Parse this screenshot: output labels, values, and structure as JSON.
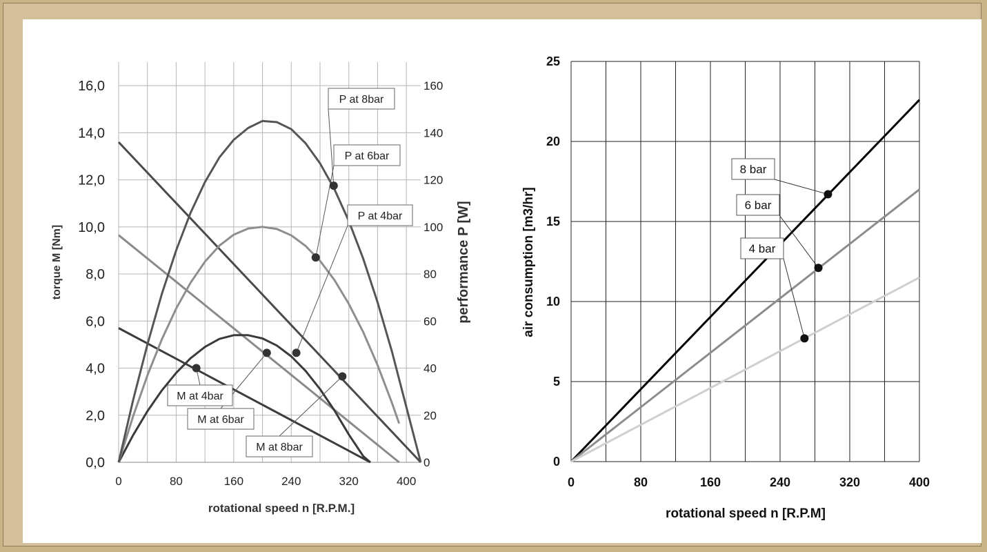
{
  "chart_data": [
    {
      "type": "line",
      "xlabel": "rotational speed n [R.P.M.]",
      "ylabel": "torque M [Nm]",
      "ylabel_right": "performance P [W]",
      "xlim": [
        0,
        420
      ],
      "ylim": [
        0,
        17
      ],
      "ylim_right": [
        0,
        170
      ],
      "x_ticks": [
        "0",
        "80",
        "160",
        "240",
        "320",
        "400"
      ],
      "y_ticks": [
        "0,0",
        "2,0",
        "4,0",
        "6,0",
        "8,0",
        "10,0",
        "12,0",
        "14,0",
        "16,0"
      ],
      "y_right_ticks": [
        "0",
        "20",
        "40",
        "60",
        "80",
        "100",
        "120",
        "140",
        "160"
      ],
      "grid": true,
      "series": [
        {
          "name": "M at 4bar",
          "axis": "left",
          "color": "#3c3c3c",
          "x": [
            0,
            350
          ],
          "y": [
            5.7,
            0.0
          ]
        },
        {
          "name": "M at 6bar",
          "axis": "left",
          "color": "#8a8a8a",
          "x": [
            0,
            390
          ],
          "y": [
            9.65,
            0.0
          ]
        },
        {
          "name": "M at 8bar",
          "axis": "left",
          "color": "#4a4a4a",
          "x": [
            0,
            420
          ],
          "y": [
            13.6,
            0.0
          ]
        },
        {
          "name": "P at 4bar",
          "axis": "right",
          "color": "#3a3a3a",
          "x": [
            0,
            20,
            40,
            60,
            80,
            100,
            120,
            140,
            160,
            180,
            200,
            220,
            240,
            260,
            280,
            300,
            320,
            340,
            350
          ],
          "y": [
            0,
            11.5,
            21.7,
            30.5,
            38.0,
            44.2,
            49.0,
            52.4,
            54.0,
            54.0,
            52.6,
            49.6,
            45.0,
            38.8,
            31.1,
            22.0,
            11.8,
            2.6,
            0
          ]
        },
        {
          "name": "P at 6bar",
          "axis": "right",
          "color": "#8e8e8e",
          "x": [
            0,
            20,
            40,
            60,
            80,
            100,
            120,
            140,
            160,
            180,
            200,
            220,
            240,
            260,
            280,
            300,
            320,
            340,
            360,
            380,
            390
          ],
          "y": [
            0,
            19.5,
            36.9,
            52.2,
            65.3,
            76.3,
            85.2,
            92.0,
            96.7,
            99.3,
            100.0,
            99.1,
            96.4,
            91.9,
            85.6,
            77.4,
            67.3,
            55.3,
            41.3,
            25.2,
            16.5
          ]
        },
        {
          "name": "P at 8bar",
          "axis": "right",
          "color": "#555555",
          "x": [
            0,
            20,
            40,
            60,
            80,
            100,
            120,
            140,
            160,
            180,
            200,
            220,
            240,
            260,
            280,
            300,
            320,
            340,
            360,
            380,
            400,
            420
          ],
          "y": [
            0,
            26.3,
            50.0,
            71.5,
            90.0,
            106.0,
            119.0,
            129.5,
            137.0,
            142.0,
            145.0,
            144.5,
            141.5,
            135.5,
            127.0,
            116.0,
            102.5,
            86.5,
            68.0,
            47.0,
            23.5,
            0
          ]
        }
      ],
      "markers": [
        {
          "x": 299,
          "y": 117.5,
          "axis": "right"
        },
        {
          "x": 274,
          "y": 87.0,
          "axis": "right"
        },
        {
          "x": 247,
          "y": 46.5,
          "axis": "right"
        },
        {
          "x": 108,
          "y": 4.0,
          "axis": "left"
        },
        {
          "x": 206,
          "y": 4.65,
          "axis": "left"
        },
        {
          "x": 311,
          "y": 3.65,
          "axis": "left"
        }
      ],
      "annotations": [
        "P at 8bar",
        "P at 6bar",
        "P at 4bar",
        "M at 4bar",
        "M at 6bar",
        "M at 8bar"
      ]
    },
    {
      "type": "line",
      "xlabel": "rotational speed n [R.P.M]",
      "ylabel": "air consumption [m3/hr]",
      "xlim": [
        0,
        400
      ],
      "ylim": [
        0,
        25
      ],
      "x_ticks": [
        "0",
        "80",
        "160",
        "240",
        "320",
        "400"
      ],
      "y_ticks": [
        "0",
        "5",
        "10",
        "15",
        "20",
        "25"
      ],
      "grid": true,
      "series": [
        {
          "name": "8 bar",
          "color": "#000000",
          "x": [
            0,
            400
          ],
          "y": [
            0,
            22.6
          ]
        },
        {
          "name": "6 bar",
          "color": "#8c8c8c",
          "x": [
            0,
            400
          ],
          "y": [
            0,
            17.0
          ]
        },
        {
          "name": "4 bar",
          "color": "#cfcfcf",
          "x": [
            0,
            400
          ],
          "y": [
            0,
            11.5
          ]
        }
      ],
      "markers": [
        {
          "x": 295,
          "y": 16.7
        },
        {
          "x": 284,
          "y": 12.1
        },
        {
          "x": 268,
          "y": 7.7
        }
      ],
      "annotations": [
        "8 bar",
        "6 bar",
        "4 bar"
      ]
    }
  ]
}
